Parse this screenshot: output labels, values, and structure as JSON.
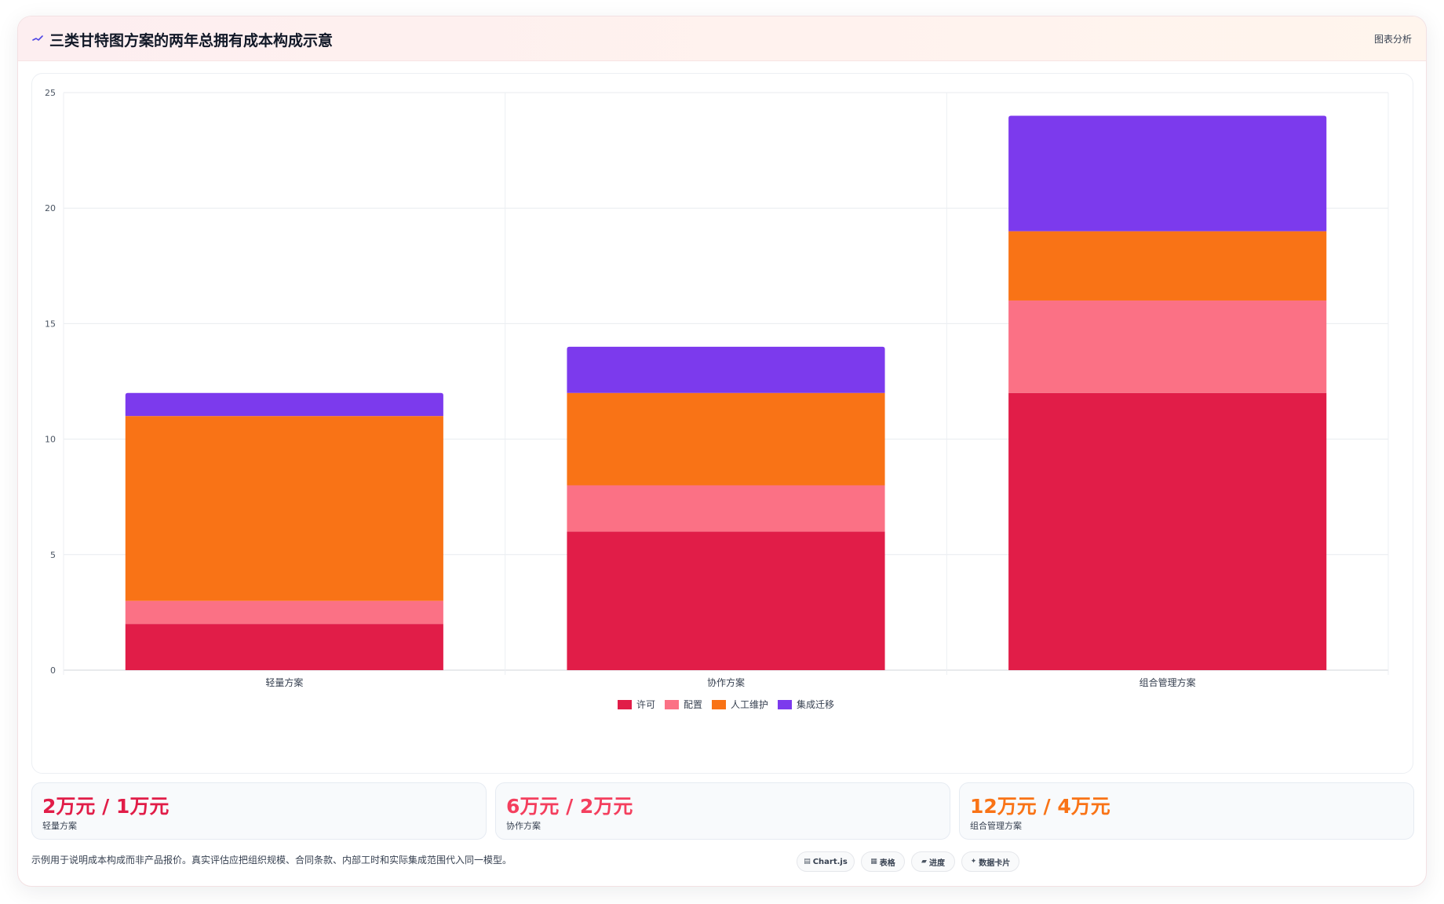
{
  "header": {
    "title": "三类甘特图方案的两年总拥有成本构成示意",
    "badge": "图表分析",
    "icon": "trend-line-icon",
    "icon_color": "#4f46e5"
  },
  "chart_data": {
    "type": "bar",
    "stacked": true,
    "categories": [
      "轻量方案",
      "协作方案",
      "组合管理方案"
    ],
    "series": [
      {
        "name": "许可",
        "color": "#e11d48",
        "values": [
          2,
          6,
          12
        ]
      },
      {
        "name": "配置",
        "color": "#fb7185",
        "values": [
          1,
          2,
          4
        ]
      },
      {
        "name": "人工维护",
        "color": "#f97316",
        "values": [
          8,
          4,
          3
        ]
      },
      {
        "name": "集成迁移",
        "color": "#7c3aed",
        "values": [
          1,
          2,
          5
        ]
      }
    ],
    "y_ticks": [
      "0",
      "5",
      "10",
      "15",
      "20",
      "25"
    ],
    "ylim": [
      0,
      25
    ],
    "grid": true,
    "legend_position": "bottom-center",
    "title": "",
    "xlabel": "",
    "ylabel": ""
  },
  "stats": [
    {
      "value": "2万元 / 1万元",
      "label": "轻量方案",
      "color": "#e11d48"
    },
    {
      "value": "6万元 / 2万元",
      "label": "协作方案",
      "color": "#f43f5e"
    },
    {
      "value": "12万元 / 4万元",
      "label": "组合管理方案",
      "color": "#f97316"
    }
  ],
  "footer": {
    "note": "示例用于说明成本构成而非产品报价。真实评估应把组织规模、合同条款、内部工时和实际集成范围代入同一模型。",
    "tags": [
      {
        "label": "Chart.js",
        "icon": "chart-icon",
        "glyph": "▤"
      },
      {
        "label": "表格",
        "icon": "table-icon",
        "glyph": "▦"
      },
      {
        "label": "进度",
        "icon": "progress-icon",
        "glyph": "▰"
      },
      {
        "label": "数据卡片",
        "icon": "sparkle-icon",
        "glyph": "✦"
      }
    ]
  }
}
